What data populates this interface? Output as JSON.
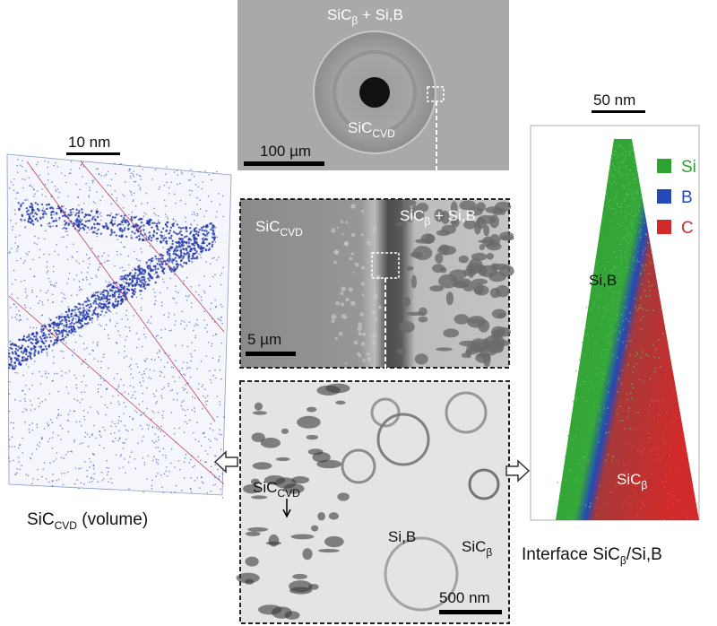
{
  "sem_overview": {
    "matrix": {
      "main": "SiC",
      "sub": "β",
      "rest": " + Si,B"
    },
    "fiber": {
      "main": "SiC",
      "sub": "CVD"
    },
    "scale_bar": "100 µm"
  },
  "sem_interface": {
    "fiber": {
      "main": "SiC",
      "sub": "CVD"
    },
    "matrix": {
      "main": "SiC",
      "sub": "β",
      "rest": " + Si,B"
    },
    "scale_bar": "5 µm"
  },
  "tem": {
    "fiber": {
      "main": "SiC",
      "sub": "CVD"
    },
    "silicon": "Si,B",
    "carbide": {
      "main": "SiC",
      "sub": "β"
    },
    "scale_bar": "500 nm"
  },
  "apt_volume": {
    "scale_bar": "10 nm",
    "caption": {
      "main": "SiC",
      "sub": "CVD",
      "rest": " (volume)"
    }
  },
  "apt_interface": {
    "scale_bar": "50 nm",
    "legend": [
      "Si",
      "B",
      "C"
    ],
    "silicon": "Si,B",
    "carbide": {
      "main": "SiC",
      "sub": "β"
    },
    "caption": {
      "pre": "Interface SiC",
      "sub": "β",
      "rest": "/Si,B"
    }
  }
}
